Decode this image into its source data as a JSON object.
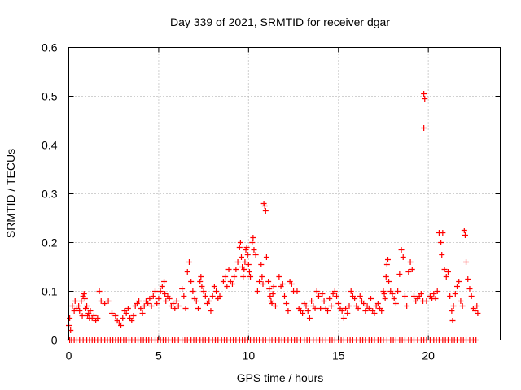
{
  "chart_data": {
    "type": "scatter",
    "title": "Day 339 of 2021, SRMTID for receiver dgar",
    "xlabel": "GPS time / hours",
    "ylabel": "SRMTID / TECUs",
    "xlim": [
      0,
      24
    ],
    "ylim": [
      0,
      0.6
    ],
    "xticks": [
      0,
      5,
      10,
      15,
      20
    ],
    "yticks": [
      0,
      0.1,
      0.2,
      0.3,
      0.4,
      0.5,
      0.6
    ],
    "xtick_labels": [
      "0",
      "5",
      "10",
      "15",
      "20"
    ],
    "ytick_labels": [
      "0",
      "0.1",
      "0.2",
      "0.3",
      "0.4",
      "0.5",
      "0.6"
    ],
    "grid": true,
    "marker": "+",
    "series": [
      {
        "name": "SRMTID",
        "color": "#ff0000",
        "points": [
          [
            0.0,
            0.03
          ],
          [
            0.05,
            0.045
          ],
          [
            0.1,
            0.02
          ],
          [
            0.2,
            0.07
          ],
          [
            0.3,
            0.06
          ],
          [
            0.35,
            0.08
          ],
          [
            0.45,
            0.065
          ],
          [
            0.55,
            0.07
          ],
          [
            0.6,
            0.06
          ],
          [
            0.7,
            0.08
          ],
          [
            0.75,
            0.05
          ],
          [
            0.8,
            0.09
          ],
          [
            0.85,
            0.095
          ],
          [
            0.9,
            0.085
          ],
          [
            0.95,
            0.065
          ],
          [
            1.0,
            0.07
          ],
          [
            1.05,
            0.05
          ],
          [
            1.1,
            0.055
          ],
          [
            1.15,
            0.045
          ],
          [
            1.2,
            0.06
          ],
          [
            1.3,
            0.045
          ],
          [
            1.4,
            0.05
          ],
          [
            1.5,
            0.04
          ],
          [
            1.6,
            0.045
          ],
          [
            1.7,
            0.1
          ],
          [
            1.8,
            0.08
          ],
          [
            2.0,
            0.075
          ],
          [
            2.2,
            0.08
          ],
          [
            2.4,
            0.055
          ],
          [
            2.6,
            0.05
          ],
          [
            2.7,
            0.04
          ],
          [
            2.8,
            0.035
          ],
          [
            2.9,
            0.03
          ],
          [
            3.0,
            0.045
          ],
          [
            3.1,
            0.06
          ],
          [
            3.2,
            0.055
          ],
          [
            3.3,
            0.065
          ],
          [
            3.4,
            0.045
          ],
          [
            3.5,
            0.04
          ],
          [
            3.6,
            0.05
          ],
          [
            3.7,
            0.07
          ],
          [
            3.8,
            0.075
          ],
          [
            3.9,
            0.08
          ],
          [
            4.0,
            0.065
          ],
          [
            4.1,
            0.055
          ],
          [
            4.2,
            0.07
          ],
          [
            4.3,
            0.08
          ],
          [
            4.4,
            0.075
          ],
          [
            4.5,
            0.085
          ],
          [
            4.6,
            0.07
          ],
          [
            4.7,
            0.09
          ],
          [
            4.8,
            0.1
          ],
          [
            4.9,
            0.075
          ],
          [
            5.0,
            0.085
          ],
          [
            5.1,
            0.1
          ],
          [
            5.2,
            0.11
          ],
          [
            5.3,
            0.12
          ],
          [
            5.35,
            0.095
          ],
          [
            5.4,
            0.08
          ],
          [
            5.5,
            0.09
          ],
          [
            5.6,
            0.085
          ],
          [
            5.7,
            0.07
          ],
          [
            5.8,
            0.075
          ],
          [
            5.9,
            0.065
          ],
          [
            6.0,
            0.08
          ],
          [
            6.1,
            0.07
          ],
          [
            6.3,
            0.105
          ],
          [
            6.4,
            0.09
          ],
          [
            6.5,
            0.065
          ],
          [
            6.6,
            0.14
          ],
          [
            6.7,
            0.16
          ],
          [
            6.8,
            0.12
          ],
          [
            6.9,
            0.1
          ],
          [
            7.0,
            0.085
          ],
          [
            7.1,
            0.08
          ],
          [
            7.2,
            0.065
          ],
          [
            7.3,
            0.12
          ],
          [
            7.35,
            0.13
          ],
          [
            7.4,
            0.11
          ],
          [
            7.5,
            0.1
          ],
          [
            7.6,
            0.09
          ],
          [
            7.7,
            0.075
          ],
          [
            7.8,
            0.08
          ],
          [
            7.9,
            0.06
          ],
          [
            8.0,
            0.09
          ],
          [
            8.1,
            0.11
          ],
          [
            8.2,
            0.1
          ],
          [
            8.3,
            0.085
          ],
          [
            8.4,
            0.09
          ],
          [
            8.6,
            0.12
          ],
          [
            8.7,
            0.13
          ],
          [
            8.8,
            0.11
          ],
          [
            8.9,
            0.145
          ],
          [
            9.0,
            0.12
          ],
          [
            9.1,
            0.115
          ],
          [
            9.2,
            0.13
          ],
          [
            9.3,
            0.145
          ],
          [
            9.4,
            0.16
          ],
          [
            9.5,
            0.19
          ],
          [
            9.55,
            0.2
          ],
          [
            9.6,
            0.17
          ],
          [
            9.65,
            0.15
          ],
          [
            9.7,
            0.13
          ],
          [
            9.75,
            0.145
          ],
          [
            9.8,
            0.16
          ],
          [
            9.85,
            0.185
          ],
          [
            9.9,
            0.19
          ],
          [
            9.95,
            0.175
          ],
          [
            10.0,
            0.155
          ],
          [
            10.05,
            0.14
          ],
          [
            10.1,
            0.13
          ],
          [
            10.2,
            0.2
          ],
          [
            10.25,
            0.21
          ],
          [
            10.3,
            0.185
          ],
          [
            10.4,
            0.175
          ],
          [
            10.5,
            0.1
          ],
          [
            10.6,
            0.12
          ],
          [
            10.7,
            0.155
          ],
          [
            10.75,
            0.13
          ],
          [
            10.8,
            0.115
          ],
          [
            10.85,
            0.28
          ],
          [
            10.9,
            0.275
          ],
          [
            10.95,
            0.265
          ],
          [
            11.0,
            0.17
          ],
          [
            11.1,
            0.12
          ],
          [
            11.15,
            0.105
          ],
          [
            11.2,
            0.09
          ],
          [
            11.25,
            0.08
          ],
          [
            11.3,
            0.075
          ],
          [
            11.35,
            0.095
          ],
          [
            11.4,
            0.11
          ],
          [
            11.5,
            0.07
          ],
          [
            11.7,
            0.13
          ],
          [
            11.8,
            0.11
          ],
          [
            11.9,
            0.115
          ],
          [
            12.0,
            0.09
          ],
          [
            12.1,
            0.075
          ],
          [
            12.2,
            0.06
          ],
          [
            12.3,
            0.12
          ],
          [
            12.4,
            0.115
          ],
          [
            12.5,
            0.1
          ],
          [
            12.7,
            0.1
          ],
          [
            12.8,
            0.065
          ],
          [
            12.9,
            0.06
          ],
          [
            13.0,
            0.055
          ],
          [
            13.1,
            0.075
          ],
          [
            13.2,
            0.07
          ],
          [
            13.3,
            0.06
          ],
          [
            13.4,
            0.045
          ],
          [
            13.5,
            0.08
          ],
          [
            13.6,
            0.07
          ],
          [
            13.7,
            0.065
          ],
          [
            13.8,
            0.1
          ],
          [
            13.9,
            0.09
          ],
          [
            14.0,
            0.065
          ],
          [
            14.1,
            0.095
          ],
          [
            14.2,
            0.08
          ],
          [
            14.3,
            0.065
          ],
          [
            14.4,
            0.06
          ],
          [
            14.5,
            0.085
          ],
          [
            14.6,
            0.07
          ],
          [
            14.7,
            0.095
          ],
          [
            14.8,
            0.1
          ],
          [
            14.9,
            0.09
          ],
          [
            15.0,
            0.075
          ],
          [
            15.1,
            0.065
          ],
          [
            15.2,
            0.06
          ],
          [
            15.3,
            0.045
          ],
          [
            15.4,
            0.065
          ],
          [
            15.5,
            0.055
          ],
          [
            15.6,
            0.07
          ],
          [
            15.7,
            0.1
          ],
          [
            15.8,
            0.09
          ],
          [
            15.9,
            0.085
          ],
          [
            16.0,
            0.07
          ],
          [
            16.1,
            0.065
          ],
          [
            16.2,
            0.09
          ],
          [
            16.3,
            0.08
          ],
          [
            16.4,
            0.075
          ],
          [
            16.5,
            0.06
          ],
          [
            16.6,
            0.07
          ],
          [
            16.7,
            0.065
          ],
          [
            16.8,
            0.085
          ],
          [
            16.9,
            0.06
          ],
          [
            17.0,
            0.055
          ],
          [
            17.1,
            0.07
          ],
          [
            17.2,
            0.075
          ],
          [
            17.3,
            0.065
          ],
          [
            17.4,
            0.06
          ],
          [
            17.5,
            0.1
          ],
          [
            17.55,
            0.095
          ],
          [
            17.6,
            0.085
          ],
          [
            17.65,
            0.13
          ],
          [
            17.7,
            0.155
          ],
          [
            17.75,
            0.165
          ],
          [
            17.8,
            0.12
          ],
          [
            17.9,
            0.1
          ],
          [
            18.0,
            0.095
          ],
          [
            18.1,
            0.085
          ],
          [
            18.2,
            0.075
          ],
          [
            18.3,
            0.1
          ],
          [
            18.4,
            0.135
          ],
          [
            18.5,
            0.185
          ],
          [
            18.6,
            0.17
          ],
          [
            18.7,
            0.09
          ],
          [
            18.8,
            0.07
          ],
          [
            18.9,
            0.14
          ],
          [
            19.0,
            0.16
          ],
          [
            19.1,
            0.145
          ],
          [
            19.2,
            0.09
          ],
          [
            19.3,
            0.08
          ],
          [
            19.4,
            0.085
          ],
          [
            19.5,
            0.09
          ],
          [
            19.6,
            0.095
          ],
          [
            19.7,
            0.08
          ],
          [
            19.75,
            0.505
          ],
          [
            19.8,
            0.495
          ],
          [
            19.75,
            0.435
          ],
          [
            19.9,
            0.08
          ],
          [
            20.1,
            0.09
          ],
          [
            20.2,
            0.085
          ],
          [
            20.3,
            0.095
          ],
          [
            20.4,
            0.085
          ],
          [
            20.5,
            0.1
          ],
          [
            20.6,
            0.22
          ],
          [
            20.7,
            0.2
          ],
          [
            20.75,
            0.175
          ],
          [
            20.8,
            0.22
          ],
          [
            20.9,
            0.145
          ],
          [
            21.0,
            0.13
          ],
          [
            21.1,
            0.14
          ],
          [
            21.2,
            0.09
          ],
          [
            21.3,
            0.06
          ],
          [
            21.35,
            0.04
          ],
          [
            21.4,
            0.07
          ],
          [
            21.5,
            0.095
          ],
          [
            21.6,
            0.11
          ],
          [
            21.7,
            0.12
          ],
          [
            21.8,
            0.08
          ],
          [
            21.9,
            0.07
          ],
          [
            22.0,
            0.225
          ],
          [
            22.05,
            0.215
          ],
          [
            22.1,
            0.16
          ],
          [
            22.2,
            0.125
          ],
          [
            22.3,
            0.105
          ],
          [
            22.4,
            0.09
          ],
          [
            22.5,
            0.065
          ],
          [
            22.6,
            0.06
          ],
          [
            22.7,
            0.07
          ],
          [
            22.75,
            0.055
          ]
        ],
        "zero_points": [
          0.05,
          0.15,
          0.3,
          0.45,
          0.6,
          0.8,
          1.0,
          1.15,
          1.3,
          1.45,
          1.6,
          1.8,
          2.0,
          2.15,
          2.3,
          2.45,
          2.6,
          2.75,
          2.9,
          3.05,
          3.2,
          3.35,
          3.5,
          3.7,
          3.85,
          4.0,
          4.15,
          4.3,
          4.45,
          4.6,
          4.8,
          4.95,
          5.1,
          5.25,
          5.4,
          5.55,
          5.75,
          5.9,
          6.1,
          6.3,
          6.45,
          6.6,
          6.8,
          6.95,
          7.1,
          7.3,
          7.45,
          7.6,
          7.8,
          8.0,
          8.15,
          8.3,
          8.5,
          8.65,
          8.8,
          9.0,
          9.15,
          9.3,
          9.5,
          9.65,
          9.8,
          9.95,
          10.1,
          10.3,
          10.45,
          10.6,
          10.8,
          10.95,
          11.15,
          11.3,
          11.5,
          11.7,
          11.85,
          12.0,
          12.2,
          12.4,
          12.55,
          12.7,
          12.9,
          13.1,
          13.25,
          13.4,
          13.6,
          13.8,
          13.95,
          14.1,
          14.3,
          14.5,
          14.65,
          14.8,
          15.0,
          15.15,
          15.3,
          15.5,
          15.65,
          15.8,
          16.0,
          16.2,
          16.35,
          16.5,
          16.7,
          16.85,
          17.0,
          17.2,
          17.35,
          17.5,
          17.7,
          17.9,
          18.05,
          18.2,
          18.4,
          18.55,
          18.7,
          18.9,
          19.05,
          19.2,
          19.4,
          19.6,
          19.75,
          19.9,
          20.1,
          20.3,
          20.45,
          20.6,
          20.8,
          20.95,
          21.1,
          21.3,
          21.45,
          21.6,
          21.8,
          21.95,
          22.1,
          22.3,
          22.5,
          22.65
        ]
      }
    ]
  }
}
